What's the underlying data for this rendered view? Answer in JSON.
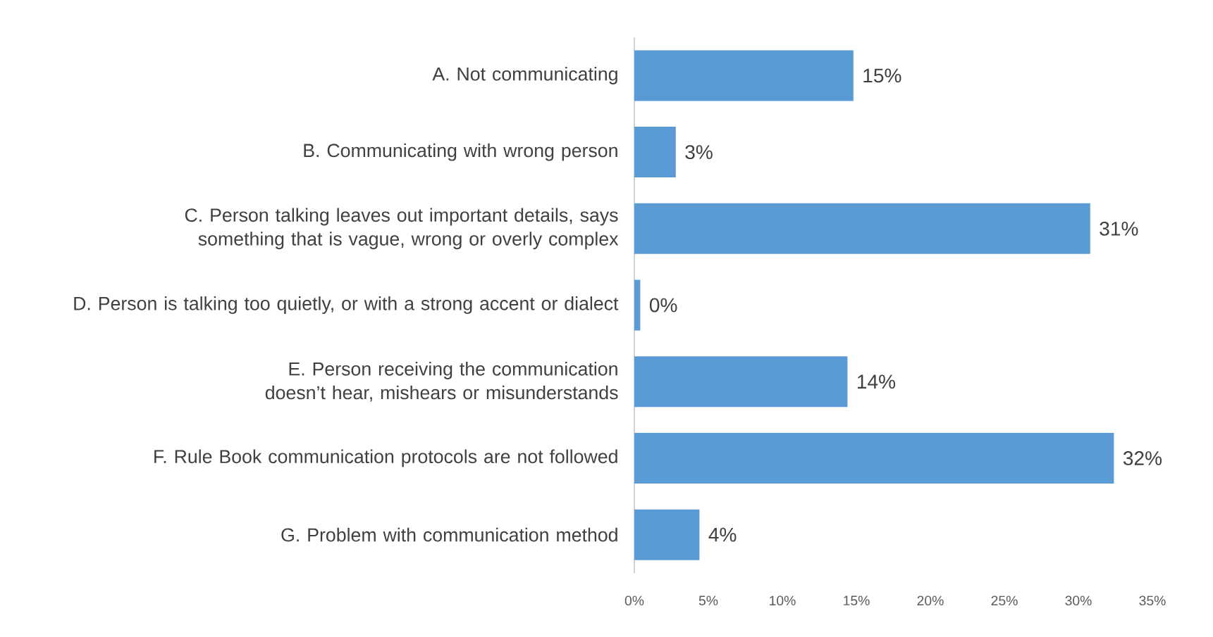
{
  "chart_data": {
    "type": "bar",
    "orientation": "horizontal",
    "categories": [
      "A. Not communicating",
      "B. Communicating with wrong person",
      "C. Person talking leaves out important details, says something that is vague, wrong or overly complex",
      "D. Person is talking too quietly, or with a strong accent or dialect",
      "E. Person receiving the communication doesn’t hear, mishears or misunderstands",
      "F. Rule Book communication protocols are not followed",
      "G. Problem with communication method"
    ],
    "values": [
      14.8,
      2.8,
      30.8,
      0.4,
      14.4,
      32.4,
      4.4
    ],
    "value_labels": [
      "15%",
      "3%",
      "31%",
      "0%",
      "14%",
      "32%",
      "4%"
    ],
    "color": "#5b9bd5",
    "xlim": [
      0,
      35
    ],
    "xticks": [
      {
        "value": 0,
        "label": "0%"
      },
      {
        "value": 5,
        "label": "5%"
      },
      {
        "value": 10,
        "label": "10%"
      },
      {
        "value": 15,
        "label": "15%"
      },
      {
        "value": 20,
        "label": "20%"
      },
      {
        "value": 25,
        "label": "25%"
      },
      {
        "value": 30,
        "label": "30%"
      },
      {
        "value": 35,
        "label": "35%"
      }
    ]
  }
}
